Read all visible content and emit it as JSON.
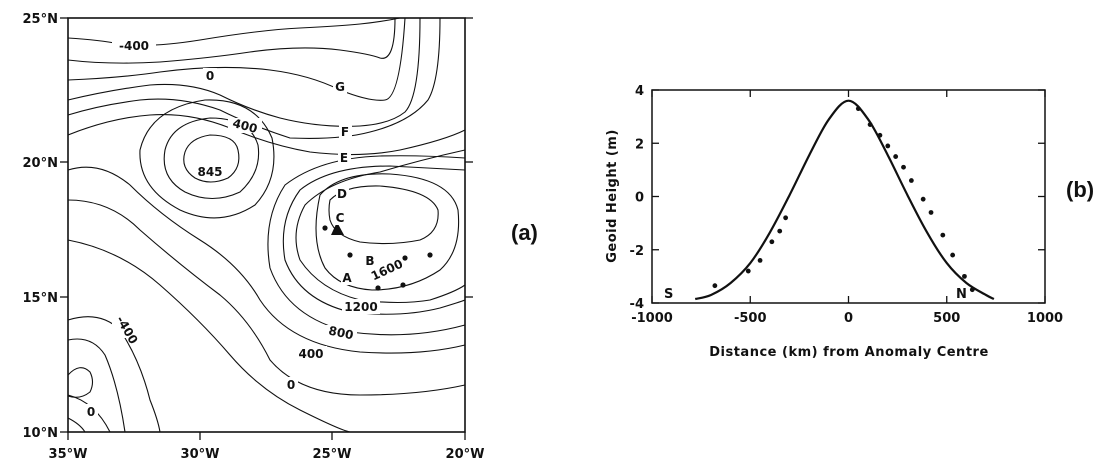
{
  "chart_data": [
    {
      "type": "contour-map",
      "panel_label": "(a)",
      "x_ticks": [
        "35°W",
        "30°W",
        "25°W",
        "20°W"
      ],
      "y_ticks": [
        "25°N",
        "20°N",
        "15°N",
        "10°N"
      ],
      "xlim": [
        -35,
        -20
      ],
      "ylim": [
        10,
        25
      ],
      "contour_labels": [
        "-400",
        "0",
        "400",
        "845",
        "1200",
        "800",
        "400",
        "0",
        "-400",
        "0",
        "1600"
      ],
      "letter_labels": [
        "G",
        "F",
        "E",
        "D",
        "C",
        "B",
        "A"
      ]
    },
    {
      "type": "line",
      "panel_label": "(b)",
      "xlabel": "Distance (km) from Anomaly Centre",
      "ylabel": "Geoid Height (m)",
      "xlim": [
        -1000,
        1000
      ],
      "ylim": [
        -4,
        4
      ],
      "x_ticks": [
        "-1000",
        "-500",
        "0",
        "500",
        "1000"
      ],
      "y_ticks": [
        "4",
        "2",
        "0",
        "-2",
        "-4"
      ],
      "end_labels": [
        "S",
        "N"
      ],
      "curve_x": [
        -780,
        -700,
        -600,
        -500,
        -400,
        -300,
        -200,
        -100,
        0,
        100,
        200,
        300,
        400,
        500,
        600,
        700,
        740
      ],
      "curve_y": [
        -3.85,
        -3.7,
        -3.25,
        -2.5,
        -1.35,
        0.05,
        1.55,
        2.9,
        3.6,
        2.9,
        1.55,
        0.05,
        -1.35,
        -2.5,
        -3.25,
        -3.7,
        -3.85
      ],
      "points_x": [
        -680,
        -510,
        -450,
        -390,
        -350,
        -320,
        50,
        110,
        160,
        200,
        240,
        280,
        320,
        380,
        420,
        480,
        530,
        590,
        630
      ],
      "points_y": [
        -3.35,
        -2.8,
        -2.4,
        -1.7,
        -1.3,
        -0.8,
        3.3,
        2.7,
        2.3,
        1.9,
        1.5,
        1.1,
        0.6,
        -0.1,
        -0.6,
        -1.45,
        -2.2,
        -3.0,
        -3.5
      ]
    }
  ]
}
